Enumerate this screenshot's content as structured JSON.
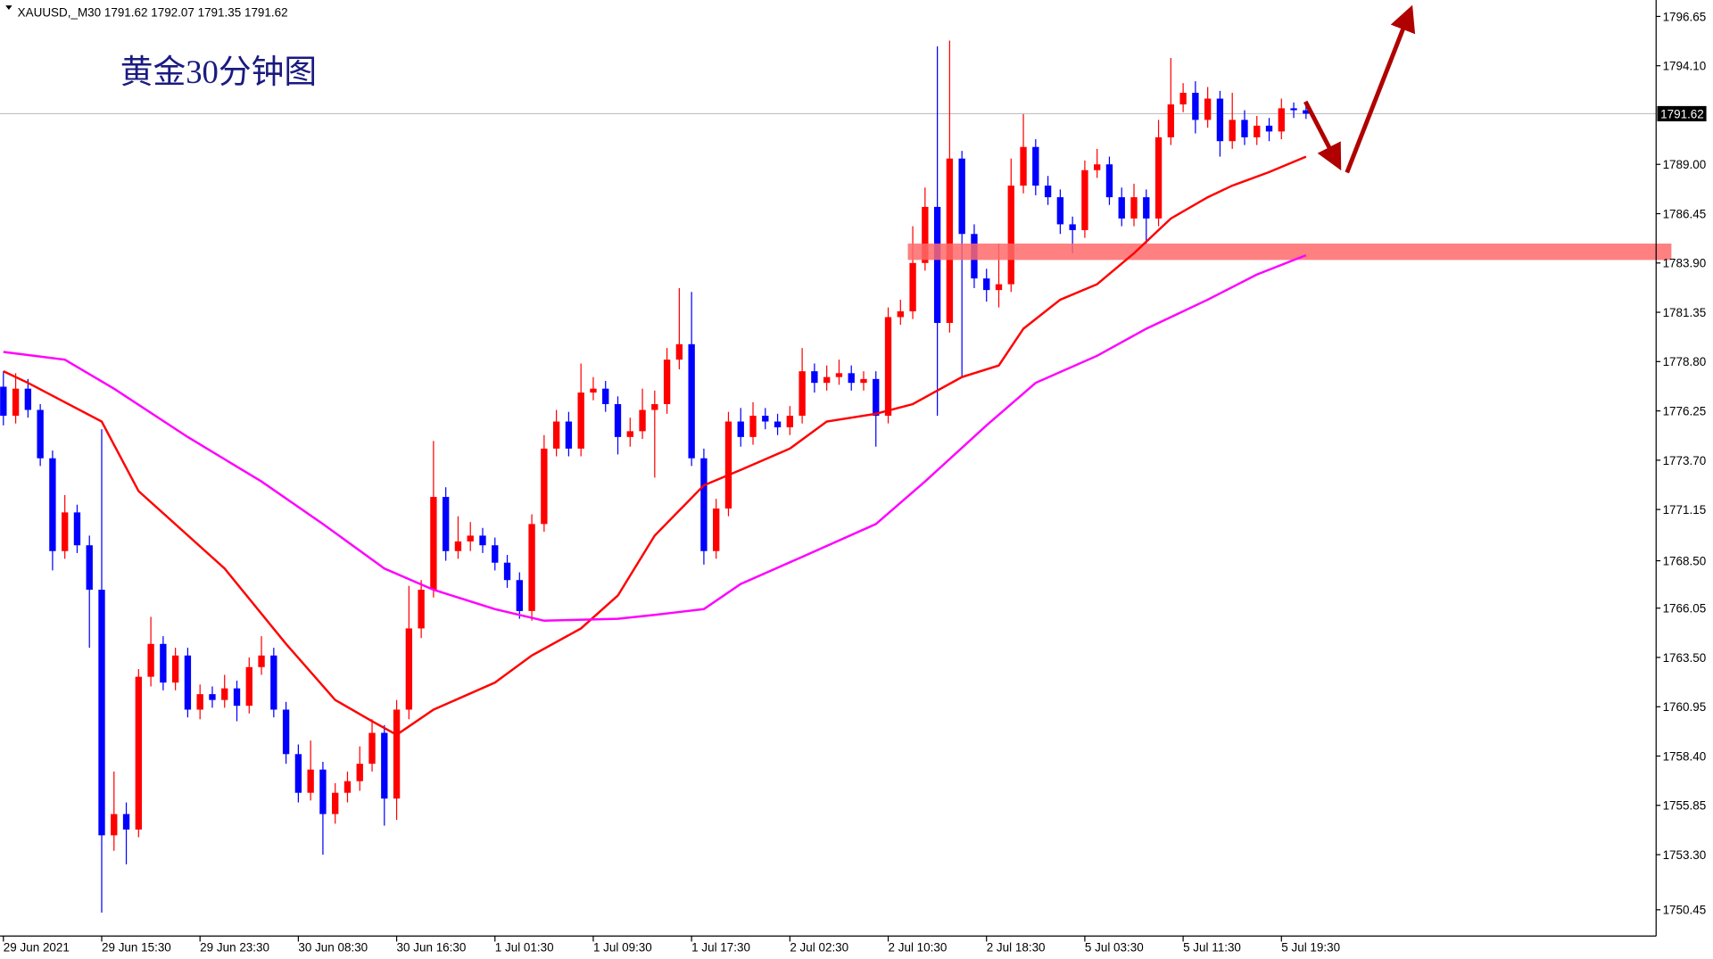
{
  "chart_data": {
    "type": "candlestick",
    "header": "XAUUSD,_M30 1791.62 1792.07 1791.35 1791.62",
    "title": "黄金30分钟图",
    "current_price": 1791.62,
    "up_color": "#ff0000",
    "down_color": "#0000ff",
    "candles": {
      "open": [
        1777.5,
        1776.0,
        1777.4,
        1776.3,
        1773.8,
        1769.0,
        1771.0,
        1769.3,
        1767.0,
        1754.3,
        1755.4,
        1754.6,
        1762.5,
        1764.2,
        1762.2,
        1763.6,
        1760.8,
        1761.6,
        1761.3,
        1761.9,
        1761.0,
        1763.0,
        1763.6,
        1760.8,
        1758.5,
        1756.5,
        1757.7,
        1755.4,
        1756.5,
        1757.1,
        1758.0,
        1759.6,
        1756.2,
        1760.8,
        1765.0,
        1767.0,
        1771.8,
        1769.0,
        1769.5,
        1769.8,
        1769.3,
        1768.4,
        1767.5,
        1765.9,
        1770.4,
        1774.3,
        1775.7,
        1774.3,
        1777.2,
        1777.4,
        1776.6,
        1774.9,
        1775.2,
        1776.3,
        1776.6,
        1778.9,
        1779.7,
        1773.8,
        1769.0,
        1771.2,
        1775.7,
        1774.9,
        1776.0,
        1775.7,
        1775.4,
        1776.0,
        1778.3,
        1777.7,
        1778.0,
        1778.2,
        1777.7,
        1777.9,
        1776.0,
        1781.1,
        1781.4,
        1783.9,
        1786.8,
        1780.8,
        1789.3,
        1785.4,
        1783.1,
        1782.5,
        1782.8,
        1787.9,
        1789.9,
        1787.9,
        1787.3,
        1785.9,
        1785.6,
        1788.7,
        1789.0,
        1787.3,
        1786.2,
        1787.3,
        1786.2,
        1790.4,
        1792.1,
        1792.7,
        1791.3,
        1792.4,
        1790.2,
        1791.3,
        1790.4,
        1791.0,
        1790.7,
        1791.9,
        1791.8
      ],
      "high": [
        1778.3,
        1778.2,
        1777.9,
        1776.6,
        1774.2,
        1771.9,
        1771.4,
        1769.8,
        1775.3,
        1757.6,
        1756.0,
        1762.9,
        1765.6,
        1764.6,
        1764.0,
        1764.0,
        1762.1,
        1762.0,
        1762.6,
        1762.3,
        1763.5,
        1764.6,
        1764.0,
        1761.2,
        1759.0,
        1759.2,
        1758.1,
        1757.0,
        1757.6,
        1758.9,
        1760.3,
        1760.0,
        1761.3,
        1767.2,
        1767.5,
        1774.7,
        1772.3,
        1770.8,
        1770.5,
        1770.2,
        1769.7,
        1768.8,
        1767.9,
        1770.9,
        1775.0,
        1776.3,
        1776.2,
        1778.7,
        1778.0,
        1777.8,
        1777.0,
        1775.9,
        1777.4,
        1777.3,
        1779.5,
        1782.6,
        1782.4,
        1774.3,
        1771.7,
        1776.2,
        1776.4,
        1776.7,
        1776.4,
        1776.1,
        1776.5,
        1779.5,
        1778.7,
        1778.6,
        1778.9,
        1778.6,
        1778.3,
        1778.3,
        1781.6,
        1782.0,
        1785.8,
        1787.8,
        1795.1,
        1795.4,
        1789.7,
        1785.9,
        1783.6,
        1784.9,
        1789.3,
        1791.6,
        1790.3,
        1788.4,
        1787.7,
        1786.3,
        1789.2,
        1789.8,
        1789.4,
        1787.8,
        1788.0,
        1787.7,
        1791.3,
        1794.5,
        1793.2,
        1793.3,
        1793.0,
        1792.8,
        1792.7,
        1791.8,
        1791.5,
        1791.4,
        1792.4,
        1792.2,
        1792.07
      ],
      "low": [
        1775.5,
        1775.6,
        1775.9,
        1773.4,
        1768.0,
        1768.6,
        1768.9,
        1764.0,
        1750.3,
        1753.5,
        1752.8,
        1754.2,
        1762.0,
        1761.8,
        1761.8,
        1760.4,
        1760.3,
        1760.9,
        1760.9,
        1760.2,
        1760.6,
        1762.6,
        1760.4,
        1758.0,
        1756.0,
        1756.1,
        1753.3,
        1754.9,
        1756.0,
        1756.6,
        1757.6,
        1754.8,
        1755.1,
        1760.3,
        1764.5,
        1766.6,
        1768.5,
        1768.6,
        1769.0,
        1768.9,
        1768.0,
        1767.1,
        1765.5,
        1765.4,
        1770.0,
        1773.9,
        1773.9,
        1773.9,
        1776.8,
        1776.2,
        1774.0,
        1774.4,
        1774.8,
        1772.8,
        1776.1,
        1778.4,
        1773.4,
        1768.3,
        1768.6,
        1770.8,
        1774.4,
        1774.5,
        1775.3,
        1775.0,
        1775.0,
        1775.6,
        1777.2,
        1777.3,
        1777.6,
        1777.3,
        1777.3,
        1774.4,
        1775.6,
        1780.7,
        1781.0,
        1783.5,
        1776.0,
        1780.3,
        1778.0,
        1782.6,
        1781.9,
        1781.6,
        1782.4,
        1787.5,
        1787.4,
        1786.9,
        1785.4,
        1784.4,
        1785.2,
        1788.3,
        1786.9,
        1785.8,
        1785.8,
        1784.9,
        1785.8,
        1790.0,
        1791.7,
        1790.6,
        1790.9,
        1789.4,
        1789.8,
        1790.0,
        1790.0,
        1790.2,
        1790.3,
        1791.4,
        1791.35
      ],
      "close": [
        1776.0,
        1777.4,
        1776.3,
        1773.8,
        1769.0,
        1771.0,
        1769.3,
        1767.0,
        1754.3,
        1755.4,
        1754.6,
        1762.5,
        1764.2,
        1762.2,
        1763.6,
        1760.8,
        1761.6,
        1761.3,
        1761.9,
        1761.0,
        1763.0,
        1763.6,
        1760.8,
        1758.5,
        1756.5,
        1757.7,
        1755.4,
        1756.5,
        1757.1,
        1758.0,
        1759.6,
        1756.2,
        1760.8,
        1765.0,
        1767.0,
        1771.8,
        1769.0,
        1769.5,
        1769.8,
        1769.3,
        1768.4,
        1767.5,
        1765.9,
        1770.4,
        1774.3,
        1775.7,
        1774.3,
        1777.2,
        1777.4,
        1776.6,
        1774.9,
        1775.2,
        1776.3,
        1776.6,
        1778.9,
        1779.7,
        1773.8,
        1769.0,
        1771.2,
        1775.7,
        1774.9,
        1776.0,
        1775.7,
        1775.4,
        1776.0,
        1778.3,
        1777.7,
        1778.0,
        1778.2,
        1777.7,
        1777.9,
        1776.0,
        1781.1,
        1781.4,
        1783.9,
        1786.8,
        1780.8,
        1789.3,
        1785.4,
        1783.1,
        1782.5,
        1782.8,
        1787.9,
        1789.9,
        1787.9,
        1787.3,
        1785.9,
        1785.6,
        1788.7,
        1789.0,
        1787.3,
        1786.2,
        1787.3,
        1786.2,
        1790.4,
        1792.1,
        1792.7,
        1791.3,
        1792.4,
        1790.2,
        1791.3,
        1790.4,
        1791.0,
        1790.7,
        1791.9,
        1791.8,
        1791.62
      ]
    },
    "moving_averages": [
      {
        "color": "#ff0000",
        "x": [
          0,
          2,
          8,
          11,
          18,
          23,
          27,
          30,
          32,
          35,
          40,
          43,
          47,
          50,
          53,
          57,
          60,
          64,
          67,
          71,
          74,
          78,
          81,
          83,
          86,
          89,
          92,
          95,
          98,
          100,
          103,
          106
        ],
        "values": [
          1778.3,
          1777.7,
          1775.7,
          1772.1,
          1768.1,
          1764.2,
          1761.3,
          1760.2,
          1759.5,
          1760.8,
          1762.2,
          1763.6,
          1765.0,
          1766.7,
          1769.8,
          1772.4,
          1773.2,
          1774.3,
          1775.7,
          1776.1,
          1776.6,
          1778.0,
          1778.6,
          1780.5,
          1782.0,
          1782.8,
          1784.4,
          1786.2,
          1787.3,
          1787.9,
          1788.6,
          1789.4
        ]
      },
      {
        "color": "#ff00ff",
        "x": [
          0,
          5,
          9,
          15,
          21,
          26,
          31,
          35,
          40,
          44,
          50,
          53,
          57,
          60,
          65,
          71,
          75,
          80,
          84,
          89,
          93,
          98,
          102,
          106
        ],
        "values": [
          1779.3,
          1778.9,
          1777.4,
          1774.9,
          1772.6,
          1770.4,
          1768.1,
          1767.0,
          1766.0,
          1765.4,
          1765.5,
          1765.7,
          1766.0,
          1767.3,
          1768.7,
          1770.4,
          1772.6,
          1775.5,
          1777.7,
          1779.1,
          1780.5,
          1782.0,
          1783.3,
          1784.3
        ]
      }
    ],
    "xlim": [
      -0.27,
      134.4
    ],
    "xticks": [
      {
        "value": 0,
        "label": "29 Jun 2021"
      },
      {
        "value": 8,
        "label": "29 Jun 15:30"
      },
      {
        "value": 16,
        "label": "29 Jun 23:30"
      },
      {
        "value": 24,
        "label": "30 Jun 08:30"
      },
      {
        "value": 32,
        "label": "30 Jun 16:30"
      },
      {
        "value": 40,
        "label": "1 Jul 01:30"
      },
      {
        "value": 48,
        "label": "1 Jul 09:30"
      },
      {
        "value": 56,
        "label": "1 Jul 17:30"
      },
      {
        "value": 64,
        "label": "2 Jul 02:30"
      },
      {
        "value": 72,
        "label": "2 Jul 10:30"
      },
      {
        "value": 80,
        "label": "2 Jul 18:30"
      },
      {
        "value": 88,
        "label": "5 Jul 03:30"
      },
      {
        "value": 96,
        "label": "5 Jul 11:30"
      },
      {
        "value": 104,
        "label": "5 Jul 19:30"
      }
    ],
    "ylim": [
      1749.09,
      1797.5
    ],
    "yticks": [
      1796.65,
      {
        "value": 1794.1,
        "label": "1794.10"
      },
      {
        "value": 1789,
        "label": "1789.00"
      },
      1786.45,
      {
        "value": 1783.9,
        "label": "1783.90"
      },
      1781.35,
      {
        "value": 1778.8,
        "label": "1778.80"
      },
      1776.25,
      {
        "value": 1773.7,
        "label": "1773.70"
      },
      1771.15,
      {
        "value": 1768.5,
        "label": "1768.50"
      },
      1766.05,
      {
        "value": 1763.5,
        "label": "1763.50"
      },
      1760.95,
      {
        "value": 1758.4,
        "label": "1758.40"
      },
      1755.85,
      {
        "value": 1753.3,
        "label": "1753.30"
      },
      1750.45
    ]
  }
}
